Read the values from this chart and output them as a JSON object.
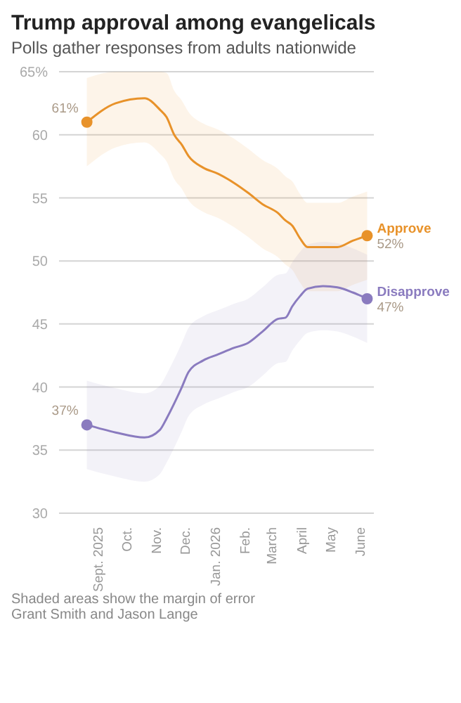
{
  "chart_data": {
    "type": "line",
    "title": "Trump approval among evangelicals",
    "subtitle": "Polls gather responses from adults nationwide",
    "x": [
      "2025-08-20",
      "2025-09-19",
      "2025-10-19",
      "2025-11-04",
      "2025-11-11",
      "2025-11-19",
      "2025-11-27",
      "2025-12-04",
      "2025-12-19",
      "2026-01-04",
      "2026-01-20",
      "2026-02-04",
      "2026-02-19",
      "2026-03-07",
      "2026-03-15",
      "2026-03-22",
      "2026-03-30",
      "2026-04-07",
      "2026-04-23",
      "2026-05-08",
      "2026-05-24",
      "2026-06-08"
    ],
    "series": [
      {
        "name": "Approve",
        "color": "#e8922a",
        "values": [
          61,
          62.5,
          62.9,
          62,
          61.4,
          60,
          59.2,
          58.3,
          57.4,
          56.9,
          56.2,
          55.4,
          54.5,
          53.8,
          53.2,
          52.8,
          51.8,
          51.1,
          51.1,
          51.1,
          51.6,
          52
        ],
        "lower": [
          57.5,
          59,
          59.4,
          58.5,
          57.9,
          56.5,
          55.7,
          54.8,
          53.9,
          53.4,
          52.7,
          51.9,
          51,
          50.3,
          49.7,
          49.3,
          48.3,
          47.6,
          47.6,
          47.6,
          48.1,
          48.5
        ],
        "upper": [
          64.5,
          65,
          65,
          65,
          64.9,
          63.5,
          62.7,
          61.8,
          60.9,
          60.4,
          59.7,
          58.9,
          58,
          57.3,
          56.7,
          56.3,
          55.3,
          54.6,
          54.6,
          54.6,
          55.1,
          55.5
        ],
        "value_labels": [
          "61%",
          null,
          null,
          null,
          null,
          null,
          null,
          null,
          null,
          null,
          null,
          null,
          null,
          null,
          null,
          null,
          null,
          null,
          null,
          null,
          null,
          "52%"
        ]
      },
      {
        "name": "Disapprove",
        "color": "#8a7bbf",
        "values": [
          37,
          36.4,
          36,
          36.6,
          37.5,
          38.7,
          40,
          41.2,
          42.1,
          42.6,
          43.1,
          43.5,
          44.4,
          45.4,
          45.5,
          46.4,
          47.2,
          47.8,
          48,
          47.9,
          47.5,
          47
        ],
        "lower": [
          33.5,
          32.9,
          32.5,
          33.1,
          34,
          35.2,
          36.5,
          37.7,
          38.6,
          39.1,
          39.6,
          40,
          40.9,
          41.9,
          42,
          42.9,
          43.7,
          44.3,
          44.5,
          44.4,
          44,
          43.5
        ],
        "upper": [
          40.5,
          39.9,
          39.5,
          40.1,
          41,
          42.2,
          43.5,
          44.7,
          45.6,
          46.1,
          46.6,
          47,
          47.9,
          48.9,
          49,
          49.9,
          50.7,
          51.3,
          51.5,
          51.4,
          51,
          50.5
        ],
        "value_labels": [
          "37%",
          null,
          null,
          null,
          null,
          null,
          null,
          null,
          null,
          null,
          null,
          null,
          null,
          null,
          null,
          null,
          null,
          null,
          null,
          null,
          null,
          "47%"
        ]
      }
    ],
    "xlim": [
      "2025-07-22",
      "2026-06-15"
    ],
    "xticks": [
      {
        "value": "2025-09-01",
        "label": "Sept. 2025"
      },
      {
        "value": "2025-10-01",
        "label": "Oct."
      },
      {
        "value": "2025-11-01",
        "label": "Nov."
      },
      {
        "value": "2025-12-01",
        "label": "Dec."
      },
      {
        "value": "2026-01-01",
        "label": "Jan. 2026"
      },
      {
        "value": "2026-02-01",
        "label": "Feb."
      },
      {
        "value": "2026-03-01",
        "label": "March"
      },
      {
        "value": "2026-04-01",
        "label": "April"
      },
      {
        "value": "2026-05-01",
        "label": "May"
      },
      {
        "value": "2026-06-01",
        "label": "June"
      }
    ],
    "ylim": [
      30,
      65
    ],
    "yticks": [
      30,
      35,
      40,
      45,
      50,
      55,
      60,
      {
        "value": 65,
        "label": "65%"
      }
    ],
    "grid": "y",
    "legend": false,
    "line_style": "solid",
    "annotations": [
      "Shaded areas show the margin of error",
      "Grant Smith and Jason Lange"
    ]
  }
}
